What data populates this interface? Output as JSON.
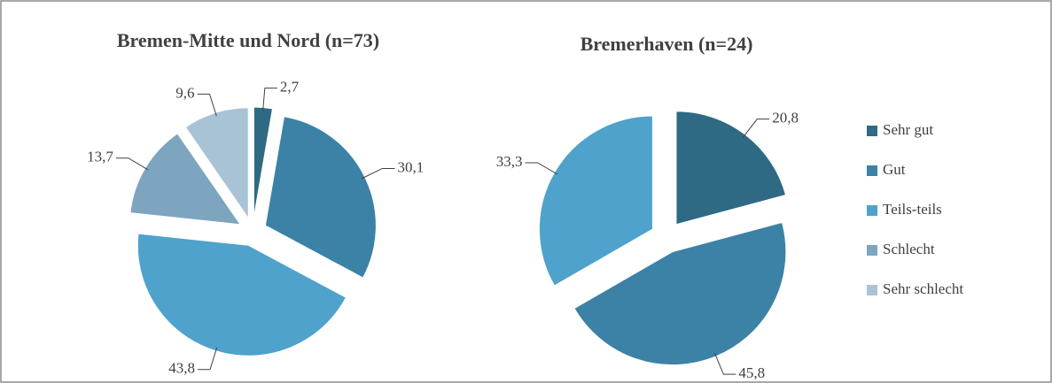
{
  "chart_data": [
    {
      "type": "pie",
      "title": "Bremen-Mitte und Nord (n=73)",
      "categories": [
        "Sehr gut",
        "Gut",
        "Teils-teils",
        "Schlecht",
        "Sehr schlecht"
      ],
      "values": [
        2.7,
        30.1,
        43.8,
        13.7,
        9.6
      ],
      "value_labels": [
        "2,7",
        "30,1",
        "43,8",
        "13,7",
        "9,6"
      ],
      "colors": [
        "#2f6a84",
        "#3b82a6",
        "#4ea2cc",
        "#7ea5c0",
        "#a8c3d6"
      ],
      "legend": "right"
    },
    {
      "type": "pie",
      "title": "Bremerhaven (n=24)",
      "values": [
        20.8,
        45.8,
        33.3
      ],
      "value_labels": [
        "20,8",
        "45,8",
        "33,3"
      ]
    }
  ]
}
